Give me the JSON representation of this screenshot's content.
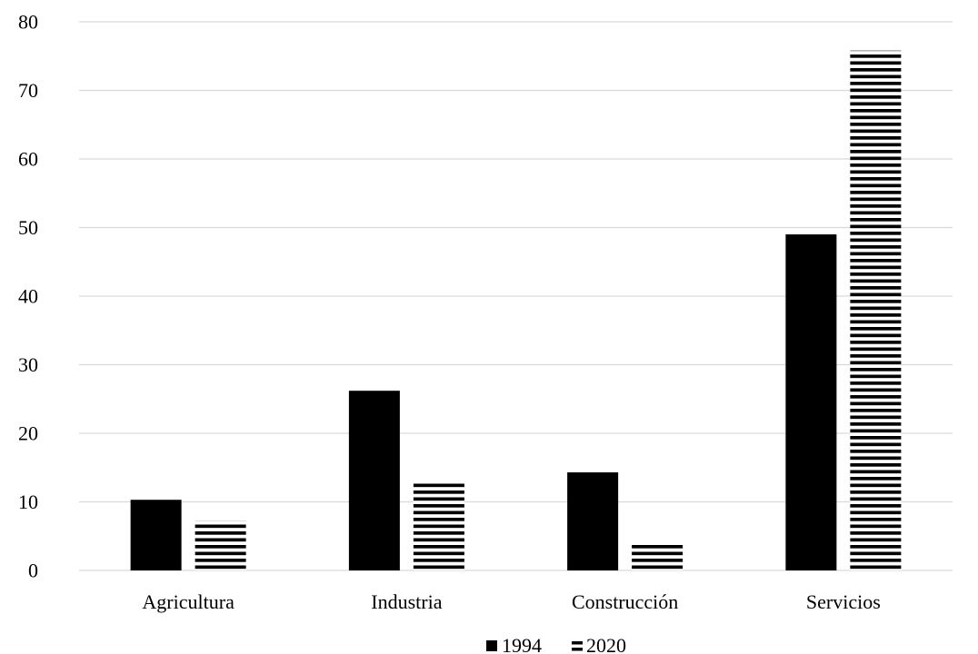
{
  "chart_data": {
    "type": "bar",
    "title": "",
    "xlabel": "",
    "ylabel": "",
    "categories": [
      "Agricultura",
      "Industria",
      "Construcción",
      "Servicios"
    ],
    "series": [
      {
        "name": "1994",
        "values": [
          10.3,
          26.2,
          14.3,
          49.0
        ],
        "fill": "solid",
        "color": "#000000"
      },
      {
        "name": "2020",
        "values": [
          7.2,
          12.9,
          4.1,
          75.8
        ],
        "fill": "horizontal-stripes",
        "color": "#000000"
      }
    ],
    "ylim": [
      0,
      80
    ],
    "yticks": [
      "0",
      "10",
      "20",
      "30",
      "40",
      "50",
      "60",
      "70",
      "80"
    ],
    "grid": true,
    "legend_position": "bottom"
  }
}
